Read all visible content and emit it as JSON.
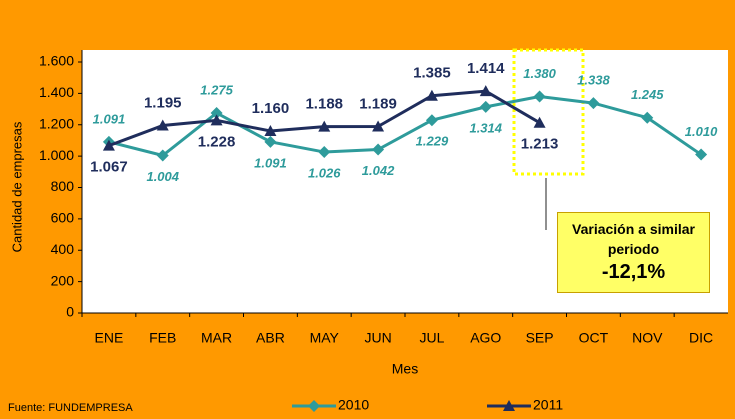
{
  "chart_data": {
    "type": "line",
    "categories": [
      "ENE",
      "FEB",
      "MAR",
      "ABR",
      "MAY",
      "JUN",
      "JUL",
      "AGO",
      "SEP",
      "OCT",
      "NOV",
      "DIC"
    ],
    "series": [
      {
        "name": "2010",
        "color": "#2e9b9b",
        "marker": "diamond",
        "values": [
          1091,
          1004,
          1275,
          1091,
          1026,
          1042,
          1229,
          1314,
          1380,
          1338,
          1245,
          1010
        ],
        "value_labels": [
          "1.091",
          "1.004",
          "1.275",
          "1.091",
          "1.026",
          "1.042",
          "1.229",
          "1.314",
          "1.380",
          "1.338",
          "1.245",
          "1.010"
        ]
      },
      {
        "name": "2011",
        "color": "#1f2d5c",
        "marker": "triangle",
        "values": [
          1067,
          1195,
          1228,
          1160,
          1188,
          1189,
          1385,
          1414,
          1213,
          null,
          null,
          null
        ],
        "value_labels": [
          "1.067",
          "1.195",
          "1.228",
          "1.160",
          "1.188",
          "1.189",
          "1.385",
          "1.414",
          "1.213",
          null,
          null,
          null
        ]
      }
    ],
    "xlabel": "Mes",
    "ylabel": "Cantidad de empresas",
    "ylim": [
      0,
      1600
    ],
    "yticks": [
      0,
      200,
      400,
      600,
      800,
      {
        "value": 1000,
        "label": "1.000"
      },
      {
        "value": 1200,
        "label": "1.200"
      },
      {
        "value": 1400,
        "label": "1.400"
      },
      {
        "value": 1600,
        "label": "1.600"
      }
    ],
    "grid": false,
    "legend": "bottom",
    "annotation": {
      "text": "Variación a similar periodo",
      "value": "-12,1%"
    },
    "source": "Fuente: FUNDEMPRESA"
  }
}
